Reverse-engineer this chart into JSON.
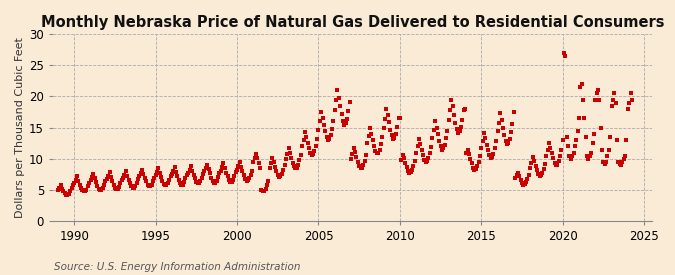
{
  "title": "Monthly Nebraska Price of Natural Gas Delivered to Residential Consumers",
  "ylabel": "Dollars per Thousand Cubic Feet",
  "source": "Source: U.S. Energy Information Administration",
  "bg_color": "#faebd7",
  "plot_bg_color": "#faebd7",
  "marker_color": "#cc0000",
  "marker": "s",
  "marker_size": 3.5,
  "xlim": [
    1988.7,
    2025.5
  ],
  "ylim": [
    0,
    30
  ],
  "yticks": [
    0,
    5,
    10,
    15,
    20,
    25,
    30
  ],
  "xticks": [
    1990,
    1995,
    2000,
    2005,
    2010,
    2015,
    2020,
    2025
  ],
  "title_fontsize": 10.5,
  "label_fontsize": 8,
  "tick_fontsize": 8.5,
  "source_fontsize": 7.5,
  "data": [
    5.0,
    5.4,
    5.9,
    5.2,
    4.8,
    4.5,
    4.2,
    4.2,
    4.4,
    4.8,
    5.3,
    5.8,
    6.2,
    6.7,
    7.3,
    6.5,
    5.9,
    5.4,
    5.0,
    4.8,
    4.9,
    5.1,
    5.7,
    6.2,
    6.6,
    7.1,
    7.6,
    6.9,
    6.3,
    5.7,
    5.2,
    5.0,
    5.1,
    5.4,
    5.9,
    6.4,
    6.8,
    7.3,
    7.9,
    7.1,
    6.5,
    5.9,
    5.4,
    5.2,
    5.2,
    5.5,
    6.1,
    6.6,
    7.0,
    7.5,
    8.0,
    7.3,
    6.7,
    6.1,
    5.6,
    5.3,
    5.4,
    5.7,
    6.2,
    6.8,
    7.2,
    7.7,
    8.3,
    7.6,
    7.0,
    6.4,
    5.8,
    5.6,
    5.6,
    5.9,
    6.5,
    7.0,
    7.4,
    7.9,
    8.5,
    7.8,
    7.1,
    6.5,
    6.0,
    5.8,
    5.8,
    6.1,
    6.7,
    7.3,
    7.6,
    8.1,
    8.7,
    7.9,
    7.3,
    6.7,
    6.2,
    5.9,
    5.9,
    6.3,
    6.9,
    7.4,
    7.8,
    8.3,
    8.9,
    8.1,
    7.5,
    6.9,
    6.3,
    6.1,
    6.1,
    6.4,
    7.0,
    7.6,
    8.0,
    8.5,
    9.1,
    8.4,
    7.7,
    7.0,
    6.4,
    6.2,
    6.2,
    6.5,
    7.1,
    7.7,
    8.1,
    8.7,
    9.3,
    8.5,
    7.8,
    7.2,
    6.6,
    6.3,
    6.3,
    6.7,
    7.3,
    7.9,
    8.3,
    8.9,
    9.5,
    8.7,
    8.1,
    7.4,
    6.8,
    6.5,
    6.6,
    6.9,
    7.5,
    8.1,
    9.5,
    10.2,
    10.8,
    10.1,
    9.3,
    8.6,
    5.0,
    4.8,
    4.8,
    5.2,
    5.8,
    6.4,
    8.5,
    9.3,
    10.2,
    9.5,
    8.7,
    8.0,
    7.4,
    7.1,
    7.2,
    7.6,
    8.2,
    9.0,
    10.0,
    10.8,
    11.8,
    11.0,
    10.2,
    9.4,
    8.8,
    8.5,
    8.6,
    9.0,
    9.8,
    10.7,
    12.0,
    13.0,
    14.3,
    13.5,
    12.6,
    11.7,
    11.0,
    10.6,
    10.8,
    11.3,
    12.1,
    13.2,
    14.7,
    16.0,
    17.5,
    16.6,
    15.5,
    14.4,
    13.5,
    13.0,
    13.2,
    13.8,
    14.8,
    16.1,
    17.8,
    19.5,
    21.0,
    19.8,
    18.5,
    17.2,
    16.1,
    15.5,
    15.7,
    16.4,
    17.6,
    19.1,
    10.0,
    10.8,
    11.8,
    11.1,
    10.3,
    9.5,
    8.9,
    8.5,
    8.6,
    9.0,
    9.7,
    10.6,
    12.5,
    13.6,
    14.9,
    14.0,
    13.0,
    12.1,
    11.3,
    10.9,
    11.0,
    11.5,
    12.4,
    13.5,
    15.0,
    16.4,
    18.0,
    17.0,
    15.9,
    14.7,
    13.8,
    13.2,
    13.4,
    14.0,
    15.1,
    16.5,
    16.5,
    9.8,
    10.7,
    10.1,
    9.4,
    8.7,
    8.1,
    7.8,
    7.9,
    8.2,
    8.9,
    9.7,
    11.0,
    12.0,
    13.2,
    12.4,
    11.5,
    10.7,
    9.9,
    9.5,
    9.6,
    10.1,
    10.9,
    11.9,
    13.4,
    14.6,
    16.0,
    15.0,
    14.0,
    12.9,
    12.0,
    11.5,
    11.7,
    12.3,
    13.3,
    14.5,
    16.3,
    17.8,
    19.5,
    18.4,
    17.1,
    15.8,
    14.8,
    14.2,
    14.4,
    15.1,
    16.3,
    17.9,
    18.0,
    11.0,
    11.5,
    10.8,
    10.0,
    9.3,
    8.6,
    8.3,
    8.4,
    8.8,
    9.5,
    10.4,
    11.8,
    12.9,
    14.2,
    13.3,
    12.3,
    11.4,
    10.6,
    10.2,
    10.3,
    10.8,
    11.7,
    12.8,
    14.4,
    15.8,
    17.3,
    16.2,
    15.0,
    13.9,
    12.9,
    12.4,
    12.6,
    13.2,
    14.3,
    15.6,
    17.5,
    7.0,
    7.5,
    7.8,
    7.2,
    6.7,
    6.2,
    5.9,
    6.0,
    6.3,
    6.8,
    7.5,
    8.6,
    9.4,
    10.3,
    9.6,
    8.9,
    8.2,
    7.6,
    7.3,
    7.4,
    7.7,
    8.4,
    9.2,
    10.5,
    11.5,
    12.6,
    11.8,
    10.9,
    10.1,
    9.4,
    9.0,
    9.1,
    9.6,
    10.4,
    11.4,
    13.0,
    27.0,
    26.5,
    13.5,
    12.0,
    10.5,
    10.0,
    10.5,
    11.0,
    12.0,
    13.0,
    14.5,
    16.5,
    21.5,
    22.0,
    19.5,
    16.5,
    13.5,
    10.5,
    10.0,
    10.5,
    11.0,
    12.5,
    14.0,
    19.5,
    20.5,
    21.0,
    19.5,
    15.0,
    11.5,
    9.5,
    9.2,
    9.5,
    10.5,
    11.5,
    13.5,
    18.5,
    19.5,
    20.5,
    19.0,
    13.0,
    9.5,
    9.2,
    9.0,
    9.5,
    10.0,
    10.5,
    13.0,
    18.0,
    19.0,
    20.5,
    19.5
  ],
  "start_year": 1989,
  "start_month": 1
}
